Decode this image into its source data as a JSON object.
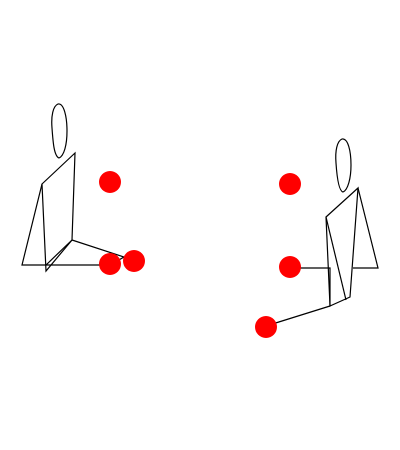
{
  "colors": {
    "background": "#ffffff",
    "figure_stroke": "#000000",
    "marker_fill": "#ff0000"
  },
  "scene": {
    "figures": [
      {
        "name": "left-seated-figure",
        "facing": "right"
      },
      {
        "name": "right-seated-figure",
        "facing": "left"
      }
    ],
    "marker_count": 6
  }
}
